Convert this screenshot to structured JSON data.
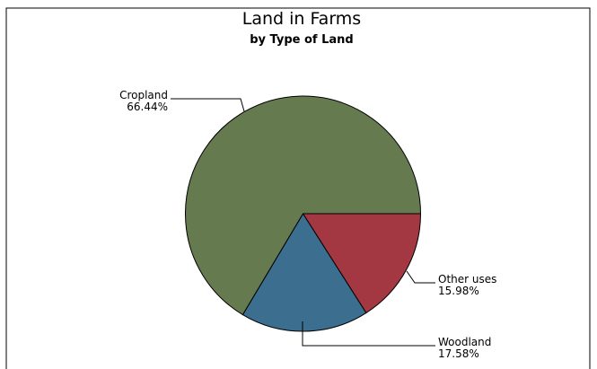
{
  "chart_data": {
    "type": "pie",
    "title": "Land in Farms",
    "subtitle": "by Type of Land",
    "slices": [
      {
        "name": "Other uses",
        "value": 15.98,
        "value_label": "15.98%",
        "color": "#a33742"
      },
      {
        "name": "Woodland",
        "value": 17.58,
        "value_label": "17.58%",
        "color": "#3b6e8f"
      },
      {
        "name": "Cropland",
        "value": 66.44,
        "value_label": "66.44%",
        "color": "#667a4f"
      }
    ]
  }
}
